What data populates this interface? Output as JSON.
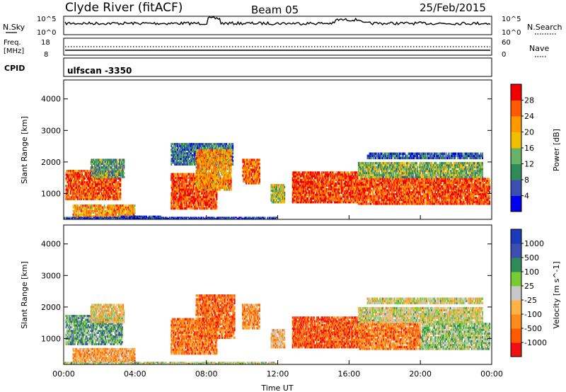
{
  "header": {
    "station": "Clyde River (fitACF)",
    "beam": "Beam 05",
    "date": "25/Feb/2015"
  },
  "noise_panel": {
    "left_label": "N.Sky",
    "left_ticks": [
      "10^5",
      "10^0"
    ],
    "right_label": "N.Search",
    "right_ticks": [
      "10^5",
      "10^0"
    ]
  },
  "freq_panel": {
    "left_label_1": "Freq.",
    "left_label_2": "[MHz]",
    "left_ticks": [
      "18",
      "8"
    ],
    "right_label": "Nave",
    "right_ticks": [
      "60",
      "0"
    ]
  },
  "cpid_panel": {
    "label": "CPID",
    "value": "ulfscan -3350"
  },
  "colors": {
    "power_scale": [
      "#0000ee",
      "#3b4fb0",
      "#2e8b57",
      "#66b266",
      "#f0c000",
      "#ff9900",
      "#ff5a00",
      "#ee0000"
    ],
    "velocity_scale": [
      "#ee1111",
      "#ff5a00",
      "#ff8c1a",
      "#ffb347",
      "#c8c8c8",
      "#77cc33",
      "#2e8b57",
      "#3b4fb0",
      "#1a3ab8"
    ]
  },
  "chart_data": [
    {
      "type": "heatmap",
      "title": "Power",
      "ylabel": "Slant Range [km]",
      "xlabel": "Time UT",
      "x_ticks": [
        "00:00",
        "04:00",
        "08:00",
        "12:00",
        "16:00",
        "20:00",
        "00:00"
      ],
      "x_range_hours": [
        0,
        24
      ],
      "ylim": [
        180,
        4600
      ],
      "y_ticks": [
        1000,
        2000,
        3000,
        4000
      ],
      "colorbar_label": "Power [dB]",
      "colorbar_ticks": [
        "4",
        "8",
        "12",
        "16",
        "20",
        "24",
        "28"
      ],
      "colorbar_range": [
        0,
        32
      ],
      "bands": [
        {
          "t0": 0.1,
          "t1": 3.2,
          "r0": 800,
          "r1": 1750,
          "v": 26
        },
        {
          "t0": 1.5,
          "t1": 3.4,
          "r0": 1500,
          "r1": 2100,
          "v": 12
        },
        {
          "t0": 0.5,
          "t1": 4.0,
          "r0": 250,
          "r1": 650,
          "v": 22
        },
        {
          "t0": 3.2,
          "t1": 5.5,
          "r0": 200,
          "r1": 300,
          "v": 5
        },
        {
          "t0": 6.0,
          "t1": 8.6,
          "r0": 500,
          "r1": 1650,
          "v": 27
        },
        {
          "t0": 6.0,
          "t1": 9.5,
          "r0": 1900,
          "r1": 2600,
          "v": 9
        },
        {
          "t0": 7.4,
          "t1": 9.4,
          "r0": 1100,
          "r1": 2400,
          "v": 22
        },
        {
          "t0": 10.0,
          "t1": 11.0,
          "r0": 1300,
          "r1": 2100,
          "v": 25
        },
        {
          "t0": 11.6,
          "t1": 12.4,
          "r0": 700,
          "r1": 1300,
          "v": 16
        },
        {
          "t0": 12.8,
          "t1": 16.5,
          "r0": 700,
          "r1": 1700,
          "v": 28
        },
        {
          "t0": 16.5,
          "t1": 23.9,
          "r0": 650,
          "r1": 1500,
          "v": 27
        },
        {
          "t0": 16.5,
          "t1": 23.5,
          "r0": 1500,
          "r1": 2000,
          "v": 14
        },
        {
          "t0": 17.0,
          "t1": 23.5,
          "r0": 2100,
          "r1": 2300,
          "v": 7
        },
        {
          "t0": 0.0,
          "t1": 12.0,
          "r0": 200,
          "r1": 260,
          "v": 4
        }
      ]
    },
    {
      "type": "heatmap",
      "title": "Velocity",
      "ylabel": "Slant Range [km]",
      "xlabel": "Time UT",
      "x_ticks": [
        "00:00",
        "04:00",
        "08:00",
        "12:00",
        "16:00",
        "20:00",
        "00:00"
      ],
      "x_range_hours": [
        0,
        24
      ],
      "ylim": [
        180,
        4600
      ],
      "y_ticks": [
        1000,
        2000,
        3000,
        4000
      ],
      "colorbar_label": "Velocity [m s^-1]",
      "colorbar_ticks": [
        "-1000",
        "-500",
        "-100",
        "-25",
        "25",
        "100",
        "500",
        "1000"
      ],
      "colorbar_range": [
        -1200,
        1200
      ],
      "bands": [
        {
          "t0": 0.1,
          "t1": 3.3,
          "r0": 800,
          "r1": 1750,
          "v": 400
        },
        {
          "t0": 1.5,
          "t1": 3.4,
          "r0": 1500,
          "r1": 2100,
          "v": -200
        },
        {
          "t0": 0.5,
          "t1": 4.0,
          "r0": 250,
          "r1": 700,
          "v": -400
        },
        {
          "t0": 6.0,
          "t1": 8.6,
          "r0": 500,
          "r1": 1650,
          "v": -600
        },
        {
          "t0": 7.4,
          "t1": 9.6,
          "r0": 1000,
          "r1": 2400,
          "v": -700
        },
        {
          "t0": 10.0,
          "t1": 11.0,
          "r0": 1300,
          "r1": 2100,
          "v": -500
        },
        {
          "t0": 11.6,
          "t1": 12.4,
          "r0": 700,
          "r1": 1300,
          "v": -300
        },
        {
          "t0": 12.8,
          "t1": 16.5,
          "r0": 700,
          "r1": 1700,
          "v": -800
        },
        {
          "t0": 16.5,
          "t1": 20.0,
          "r0": 650,
          "r1": 1600,
          "v": -600
        },
        {
          "t0": 20.0,
          "t1": 23.9,
          "r0": 650,
          "r1": 1500,
          "v": 200
        },
        {
          "t0": 16.5,
          "t1": 23.5,
          "r0": 1500,
          "r1": 2000,
          "v": 0
        },
        {
          "t0": 17.0,
          "t1": 23.5,
          "r0": 2100,
          "r1": 2300,
          "v": -30
        },
        {
          "t0": 0.0,
          "t1": 12.0,
          "r0": 200,
          "r1": 260,
          "v": 80
        }
      ]
    }
  ]
}
